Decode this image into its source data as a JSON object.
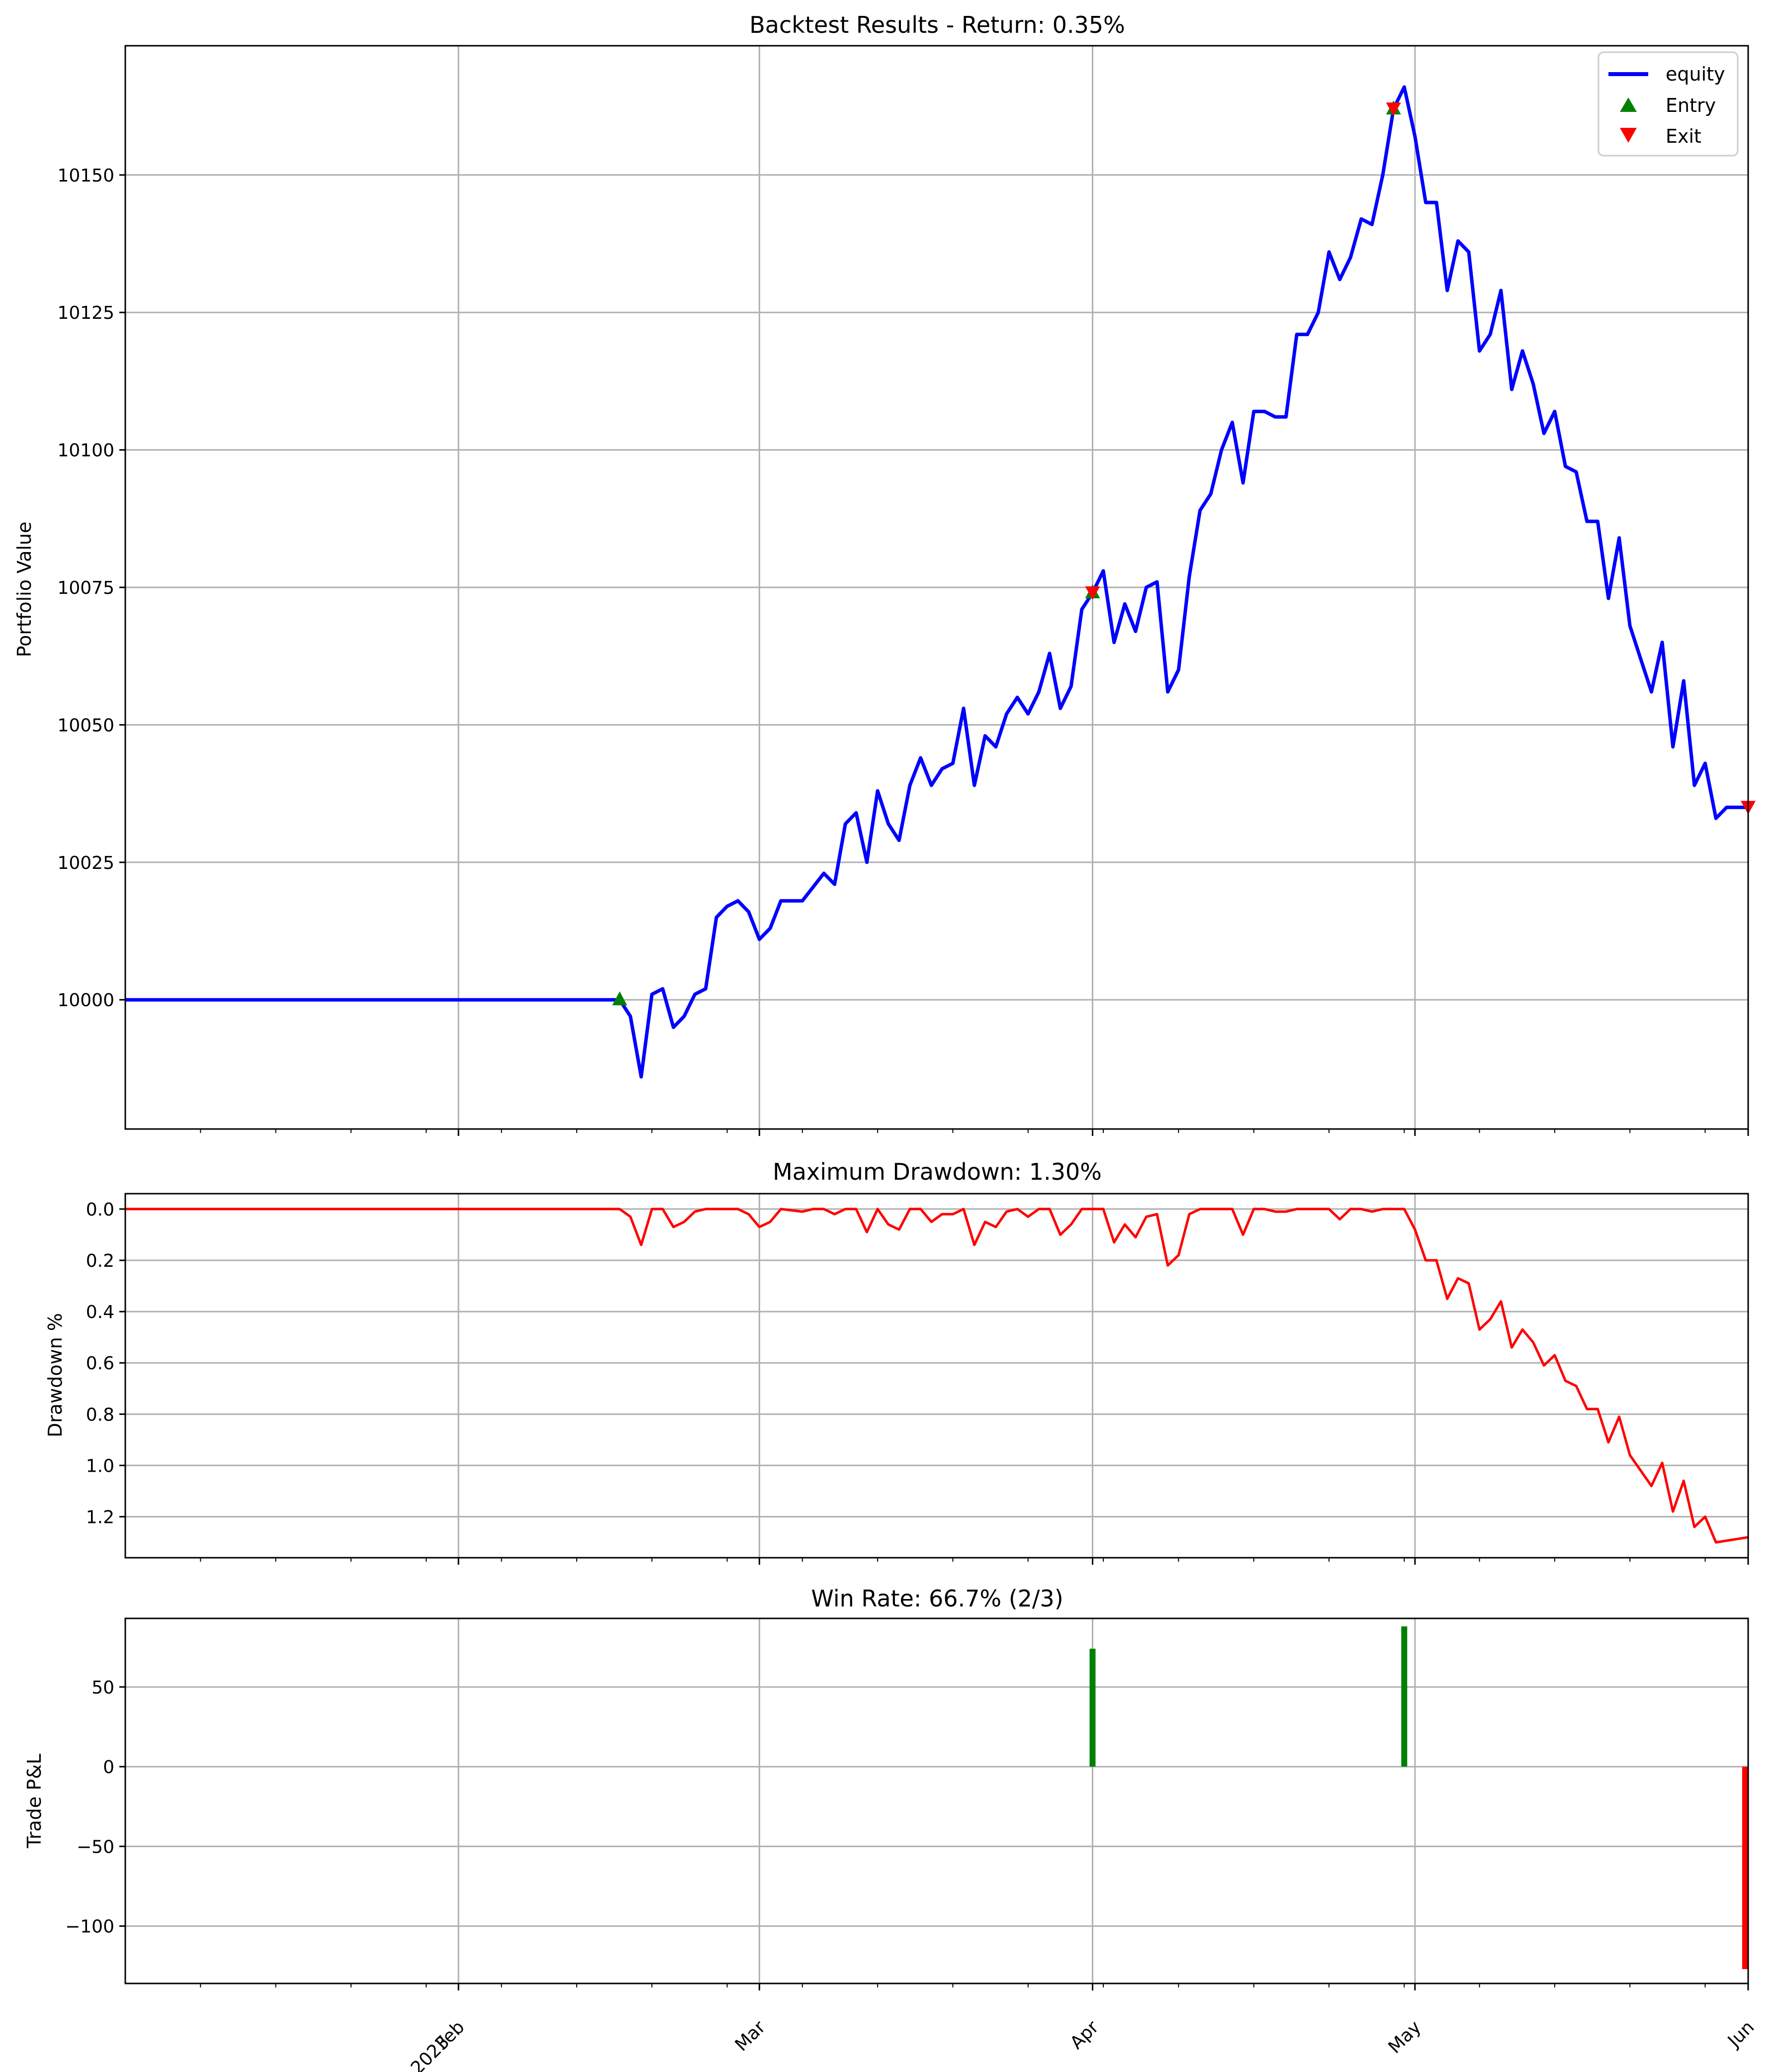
{
  "chart_data": [
    {
      "type": "line",
      "title": "Backtest Results - Return: 0.35%",
      "xlabel": "",
      "ylabel": "Portfolio Value",
      "x_range": [
        "2023-01-01",
        "2023-06-01"
      ],
      "ylim": [
        9976.5,
        10173.5
      ],
      "y_ticks": [
        10000,
        10025,
        10050,
        10075,
        10100,
        10125,
        10150
      ],
      "y_tick_labels": [
        "10000",
        "10025",
        "10050",
        "10075",
        "10100",
        "10125",
        "10150"
      ],
      "grid": true,
      "legend": {
        "placement": "top-right",
        "entries": [
          "equity",
          "Entry",
          "Exit"
        ]
      },
      "colors": {
        "equity": "#0000ff",
        "entry": "#008000",
        "exit": "#ff0000"
      },
      "series": [
        {
          "name": "equity",
          "points": [
            [
              "2023-01-01",
              10000
            ],
            [
              "2023-02-16",
              10000
            ],
            [
              "2023-02-17",
              9997
            ],
            [
              "2023-02-18",
              9986
            ],
            [
              "2023-02-19",
              10001
            ],
            [
              "2023-02-20",
              10002
            ],
            [
              "2023-02-21",
              9995
            ],
            [
              "2023-02-22",
              9997
            ],
            [
              "2023-02-23",
              10001
            ],
            [
              "2023-02-24",
              10002
            ],
            [
              "2023-02-25",
              10015
            ],
            [
              "2023-02-26",
              10017
            ],
            [
              "2023-02-27",
              10018
            ],
            [
              "2023-02-28",
              10016
            ],
            [
              "2023-03-01",
              10011
            ],
            [
              "2023-03-02",
              10013
            ],
            [
              "2023-03-03",
              10018
            ],
            [
              "2023-03-05",
              10018
            ],
            [
              "2023-03-07",
              10023
            ],
            [
              "2023-03-08",
              10021
            ],
            [
              "2023-03-09",
              10032
            ],
            [
              "2023-03-10",
              10034
            ],
            [
              "2023-03-11",
              10025
            ],
            [
              "2023-03-12",
              10038
            ],
            [
              "2023-03-13",
              10032
            ],
            [
              "2023-03-14",
              10029
            ],
            [
              "2023-03-15",
              10039
            ],
            [
              "2023-03-16",
              10044
            ],
            [
              "2023-03-17",
              10039
            ],
            [
              "2023-03-18",
              10042
            ],
            [
              "2023-03-19",
              10043
            ],
            [
              "2023-03-20",
              10053
            ],
            [
              "2023-03-21",
              10039
            ],
            [
              "2023-03-22",
              10048
            ],
            [
              "2023-03-23",
              10046
            ],
            [
              "2023-03-24",
              10052
            ],
            [
              "2023-03-25",
              10055
            ],
            [
              "2023-03-26",
              10052
            ],
            [
              "2023-03-27",
              10056
            ],
            [
              "2023-03-28",
              10063
            ],
            [
              "2023-03-29",
              10053
            ],
            [
              "2023-03-30",
              10057
            ],
            [
              "2023-03-31",
              10071
            ],
            [
              "2023-04-01",
              10074
            ],
            [
              "2023-04-02",
              10078
            ],
            [
              "2023-04-03",
              10065
            ],
            [
              "2023-04-04",
              10072
            ],
            [
              "2023-04-05",
              10067
            ],
            [
              "2023-04-06",
              10075
            ],
            [
              "2023-04-07",
              10076
            ],
            [
              "2023-04-08",
              10056
            ],
            [
              "2023-04-09",
              10060
            ],
            [
              "2023-04-10",
              10077
            ],
            [
              "2023-04-11",
              10089
            ],
            [
              "2023-04-12",
              10092
            ],
            [
              "2023-04-13",
              10100
            ],
            [
              "2023-04-14",
              10105
            ],
            [
              "2023-04-15",
              10094
            ],
            [
              "2023-04-16",
              10107
            ],
            [
              "2023-04-17",
              10107
            ],
            [
              "2023-04-18",
              10106
            ],
            [
              "2023-04-19",
              10106
            ],
            [
              "2023-04-20",
              10121
            ],
            [
              "2023-04-21",
              10121
            ],
            [
              "2023-04-22",
              10125
            ],
            [
              "2023-04-23",
              10136
            ],
            [
              "2023-04-24",
              10131
            ],
            [
              "2023-04-25",
              10135
            ],
            [
              "2023-04-26",
              10142
            ],
            [
              "2023-04-27",
              10141
            ],
            [
              "2023-04-28",
              10150
            ],
            [
              "2023-04-29",
              10162
            ],
            [
              "2023-04-30",
              10166
            ],
            [
              "2023-05-01",
              10157
            ],
            [
              "2023-05-02",
              10145
            ],
            [
              "2023-05-03",
              10145
            ],
            [
              "2023-05-04",
              10129
            ],
            [
              "2023-05-05",
              10138
            ],
            [
              "2023-05-06",
              10136
            ],
            [
              "2023-05-07",
              10118
            ],
            [
              "2023-05-08",
              10121
            ],
            [
              "2023-05-09",
              10129
            ],
            [
              "2023-05-10",
              10111
            ],
            [
              "2023-05-11",
              10118
            ],
            [
              "2023-05-12",
              10112
            ],
            [
              "2023-05-13",
              10103
            ],
            [
              "2023-05-14",
              10107
            ],
            [
              "2023-05-15",
              10097
            ],
            [
              "2023-05-16",
              10096
            ],
            [
              "2023-05-17",
              10087
            ],
            [
              "2023-05-18",
              10087
            ],
            [
              "2023-05-19",
              10073
            ],
            [
              "2023-05-20",
              10084
            ],
            [
              "2023-05-21",
              10068
            ],
            [
              "2023-05-22",
              10062
            ],
            [
              "2023-05-23",
              10056
            ],
            [
              "2023-05-24",
              10065
            ],
            [
              "2023-05-25",
              10046
            ],
            [
              "2023-05-26",
              10058
            ],
            [
              "2023-05-27",
              10039
            ],
            [
              "2023-05-28",
              10043
            ],
            [
              "2023-05-29",
              10033
            ],
            [
              "2023-05-30",
              10035
            ],
            [
              "2023-06-01",
              10035
            ]
          ]
        }
      ],
      "entries": [
        [
          "2023-02-16",
          10000
        ],
        [
          "2023-04-01",
          10074
        ],
        [
          "2023-04-29",
          10162
        ]
      ],
      "exits": [
        [
          "2023-04-01",
          10074
        ],
        [
          "2023-04-29",
          10162
        ],
        [
          "2023-06-01",
          10035
        ]
      ]
    },
    {
      "type": "line",
      "title": "Maximum Drawdown: 1.30%",
      "xlabel": "",
      "ylabel": "Drawdown %",
      "x_range": [
        "2023-01-01",
        "2023-06-01"
      ],
      "ylim": [
        1.36,
        -0.06
      ],
      "y_inverted": true,
      "y_ticks": [
        0.0,
        0.2,
        0.4,
        0.6,
        0.8,
        1.0,
        1.2
      ],
      "y_tick_labels": [
        "0.0",
        "0.2",
        "0.4",
        "0.6",
        "0.8",
        "1.0",
        "1.2"
      ],
      "grid": true,
      "colors": {
        "drawdown": "#ff0000"
      },
      "series": [
        {
          "name": "",
          "points": [
            [
              "2023-01-01",
              0.0
            ],
            [
              "2023-02-16",
              0.0
            ],
            [
              "2023-02-17",
              0.03
            ],
            [
              "2023-02-18",
              0.14
            ],
            [
              "2023-02-19",
              0.0
            ],
            [
              "2023-02-20",
              0.0
            ],
            [
              "2023-02-21",
              0.07
            ],
            [
              "2023-02-22",
              0.05
            ],
            [
              "2023-02-23",
              0.01
            ],
            [
              "2023-02-24",
              0.0
            ],
            [
              "2023-02-25",
              0.0
            ],
            [
              "2023-02-26",
              0.0
            ],
            [
              "2023-02-27",
              0.0
            ],
            [
              "2023-02-28",
              0.02
            ],
            [
              "2023-03-01",
              0.07
            ],
            [
              "2023-03-02",
              0.05
            ],
            [
              "2023-03-03",
              0.0
            ],
            [
              "2023-03-05",
              0.01
            ],
            [
              "2023-03-06",
              0.0
            ],
            [
              "2023-03-07",
              0.0
            ],
            [
              "2023-03-08",
              0.02
            ],
            [
              "2023-03-09",
              0.0
            ],
            [
              "2023-03-10",
              0.0
            ],
            [
              "2023-03-11",
              0.09
            ],
            [
              "2023-03-12",
              0.0
            ],
            [
              "2023-03-13",
              0.06
            ],
            [
              "2023-03-14",
              0.08
            ],
            [
              "2023-03-15",
              0.0
            ],
            [
              "2023-03-16",
              0.0
            ],
            [
              "2023-03-17",
              0.05
            ],
            [
              "2023-03-18",
              0.02
            ],
            [
              "2023-03-19",
              0.02
            ],
            [
              "2023-03-20",
              0.0
            ],
            [
              "2023-03-21",
              0.14
            ],
            [
              "2023-03-22",
              0.05
            ],
            [
              "2023-03-23",
              0.07
            ],
            [
              "2023-03-24",
              0.01
            ],
            [
              "2023-03-25",
              0.0
            ],
            [
              "2023-03-26",
              0.03
            ],
            [
              "2023-03-27",
              0.0
            ],
            [
              "2023-03-28",
              0.0
            ],
            [
              "2023-03-29",
              0.1
            ],
            [
              "2023-03-30",
              0.06
            ],
            [
              "2023-03-31",
              0.0
            ],
            [
              "2023-04-01",
              0.0
            ],
            [
              "2023-04-02",
              0.0
            ],
            [
              "2023-04-03",
              0.13
            ],
            [
              "2023-04-04",
              0.06
            ],
            [
              "2023-04-05",
              0.11
            ],
            [
              "2023-04-06",
              0.03
            ],
            [
              "2023-04-07",
              0.02
            ],
            [
              "2023-04-08",
              0.22
            ],
            [
              "2023-04-09",
              0.18
            ],
            [
              "2023-04-10",
              0.02
            ],
            [
              "2023-04-11",
              0.0
            ],
            [
              "2023-04-12",
              0.0
            ],
            [
              "2023-04-13",
              0.0
            ],
            [
              "2023-04-14",
              0.0
            ],
            [
              "2023-04-15",
              0.1
            ],
            [
              "2023-04-16",
              0.0
            ],
            [
              "2023-04-17",
              0.0
            ],
            [
              "2023-04-18",
              0.01
            ],
            [
              "2023-04-19",
              0.01
            ],
            [
              "2023-04-20",
              0.0
            ],
            [
              "2023-04-21",
              0.0
            ],
            [
              "2023-04-22",
              0.0
            ],
            [
              "2023-04-23",
              0.0
            ],
            [
              "2023-04-24",
              0.04
            ],
            [
              "2023-04-25",
              0.0
            ],
            [
              "2023-04-26",
              0.0
            ],
            [
              "2023-04-27",
              0.01
            ],
            [
              "2023-04-28",
              0.0
            ],
            [
              "2023-04-29",
              0.0
            ],
            [
              "2023-04-30",
              0.0
            ],
            [
              "2023-05-01",
              0.08
            ],
            [
              "2023-05-02",
              0.2
            ],
            [
              "2023-05-03",
              0.2
            ],
            [
              "2023-05-04",
              0.35
            ],
            [
              "2023-05-05",
              0.27
            ],
            [
              "2023-05-06",
              0.29
            ],
            [
              "2023-05-07",
              0.47
            ],
            [
              "2023-05-08",
              0.43
            ],
            [
              "2023-05-09",
              0.36
            ],
            [
              "2023-05-10",
              0.54
            ],
            [
              "2023-05-11",
              0.47
            ],
            [
              "2023-05-12",
              0.52
            ],
            [
              "2023-05-13",
              0.61
            ],
            [
              "2023-05-14",
              0.57
            ],
            [
              "2023-05-15",
              0.67
            ],
            [
              "2023-05-16",
              0.69
            ],
            [
              "2023-05-17",
              0.78
            ],
            [
              "2023-05-18",
              0.78
            ],
            [
              "2023-05-19",
              0.91
            ],
            [
              "2023-05-20",
              0.81
            ],
            [
              "2023-05-21",
              0.96
            ],
            [
              "2023-05-22",
              1.02
            ],
            [
              "2023-05-23",
              1.08
            ],
            [
              "2023-05-24",
              0.99
            ],
            [
              "2023-05-25",
              1.18
            ],
            [
              "2023-05-26",
              1.06
            ],
            [
              "2023-05-27",
              1.24
            ],
            [
              "2023-05-28",
              1.2
            ],
            [
              "2023-05-29",
              1.3
            ],
            [
              "2023-06-01",
              1.28
            ]
          ]
        }
      ]
    },
    {
      "type": "bar",
      "title": "Win Rate: 66.7% (2/3)",
      "xlabel": "",
      "ylabel": "Trade P&L",
      "x_range": [
        "2023-01-01",
        "2023-06-01"
      ],
      "ylim": [
        -136,
        93
      ],
      "y_ticks": [
        -100,
        -50,
        0,
        50
      ],
      "y_tick_labels": [
        "−100",
        "−50",
        "0",
        "50"
      ],
      "grid": true,
      "colors": {
        "win": "#008000",
        "loss": "#ff0000"
      },
      "bars": [
        {
          "date": "2023-04-01",
          "value": 74
        },
        {
          "date": "2023-04-30",
          "value": 88
        },
        {
          "date": "2023-06-01",
          "value": -127
        }
      ],
      "x_ticks": [
        {
          "date": "2023-02-01",
          "label": "Feb",
          "label2": "2023"
        },
        {
          "date": "2023-03-01",
          "label": "Mar",
          "label2": ""
        },
        {
          "date": "2023-04-01",
          "label": "Apr",
          "label2": ""
        },
        {
          "date": "2023-05-01",
          "label": "May",
          "label2": ""
        },
        {
          "date": "2023-06-01",
          "label": "Jun",
          "label2": ""
        }
      ],
      "x_minor_ticks": [
        "2023-01-08",
        "2023-01-15",
        "2023-01-22",
        "2023-01-29",
        "2023-02-05",
        "2023-02-12",
        "2023-02-19",
        "2023-02-26",
        "2023-03-05",
        "2023-03-12",
        "2023-03-19",
        "2023-03-26",
        "2023-04-02",
        "2023-04-09",
        "2023-04-16",
        "2023-04-23",
        "2023-04-30",
        "2023-05-07",
        "2023-05-14",
        "2023-05-21",
        "2023-05-28"
      ]
    }
  ]
}
